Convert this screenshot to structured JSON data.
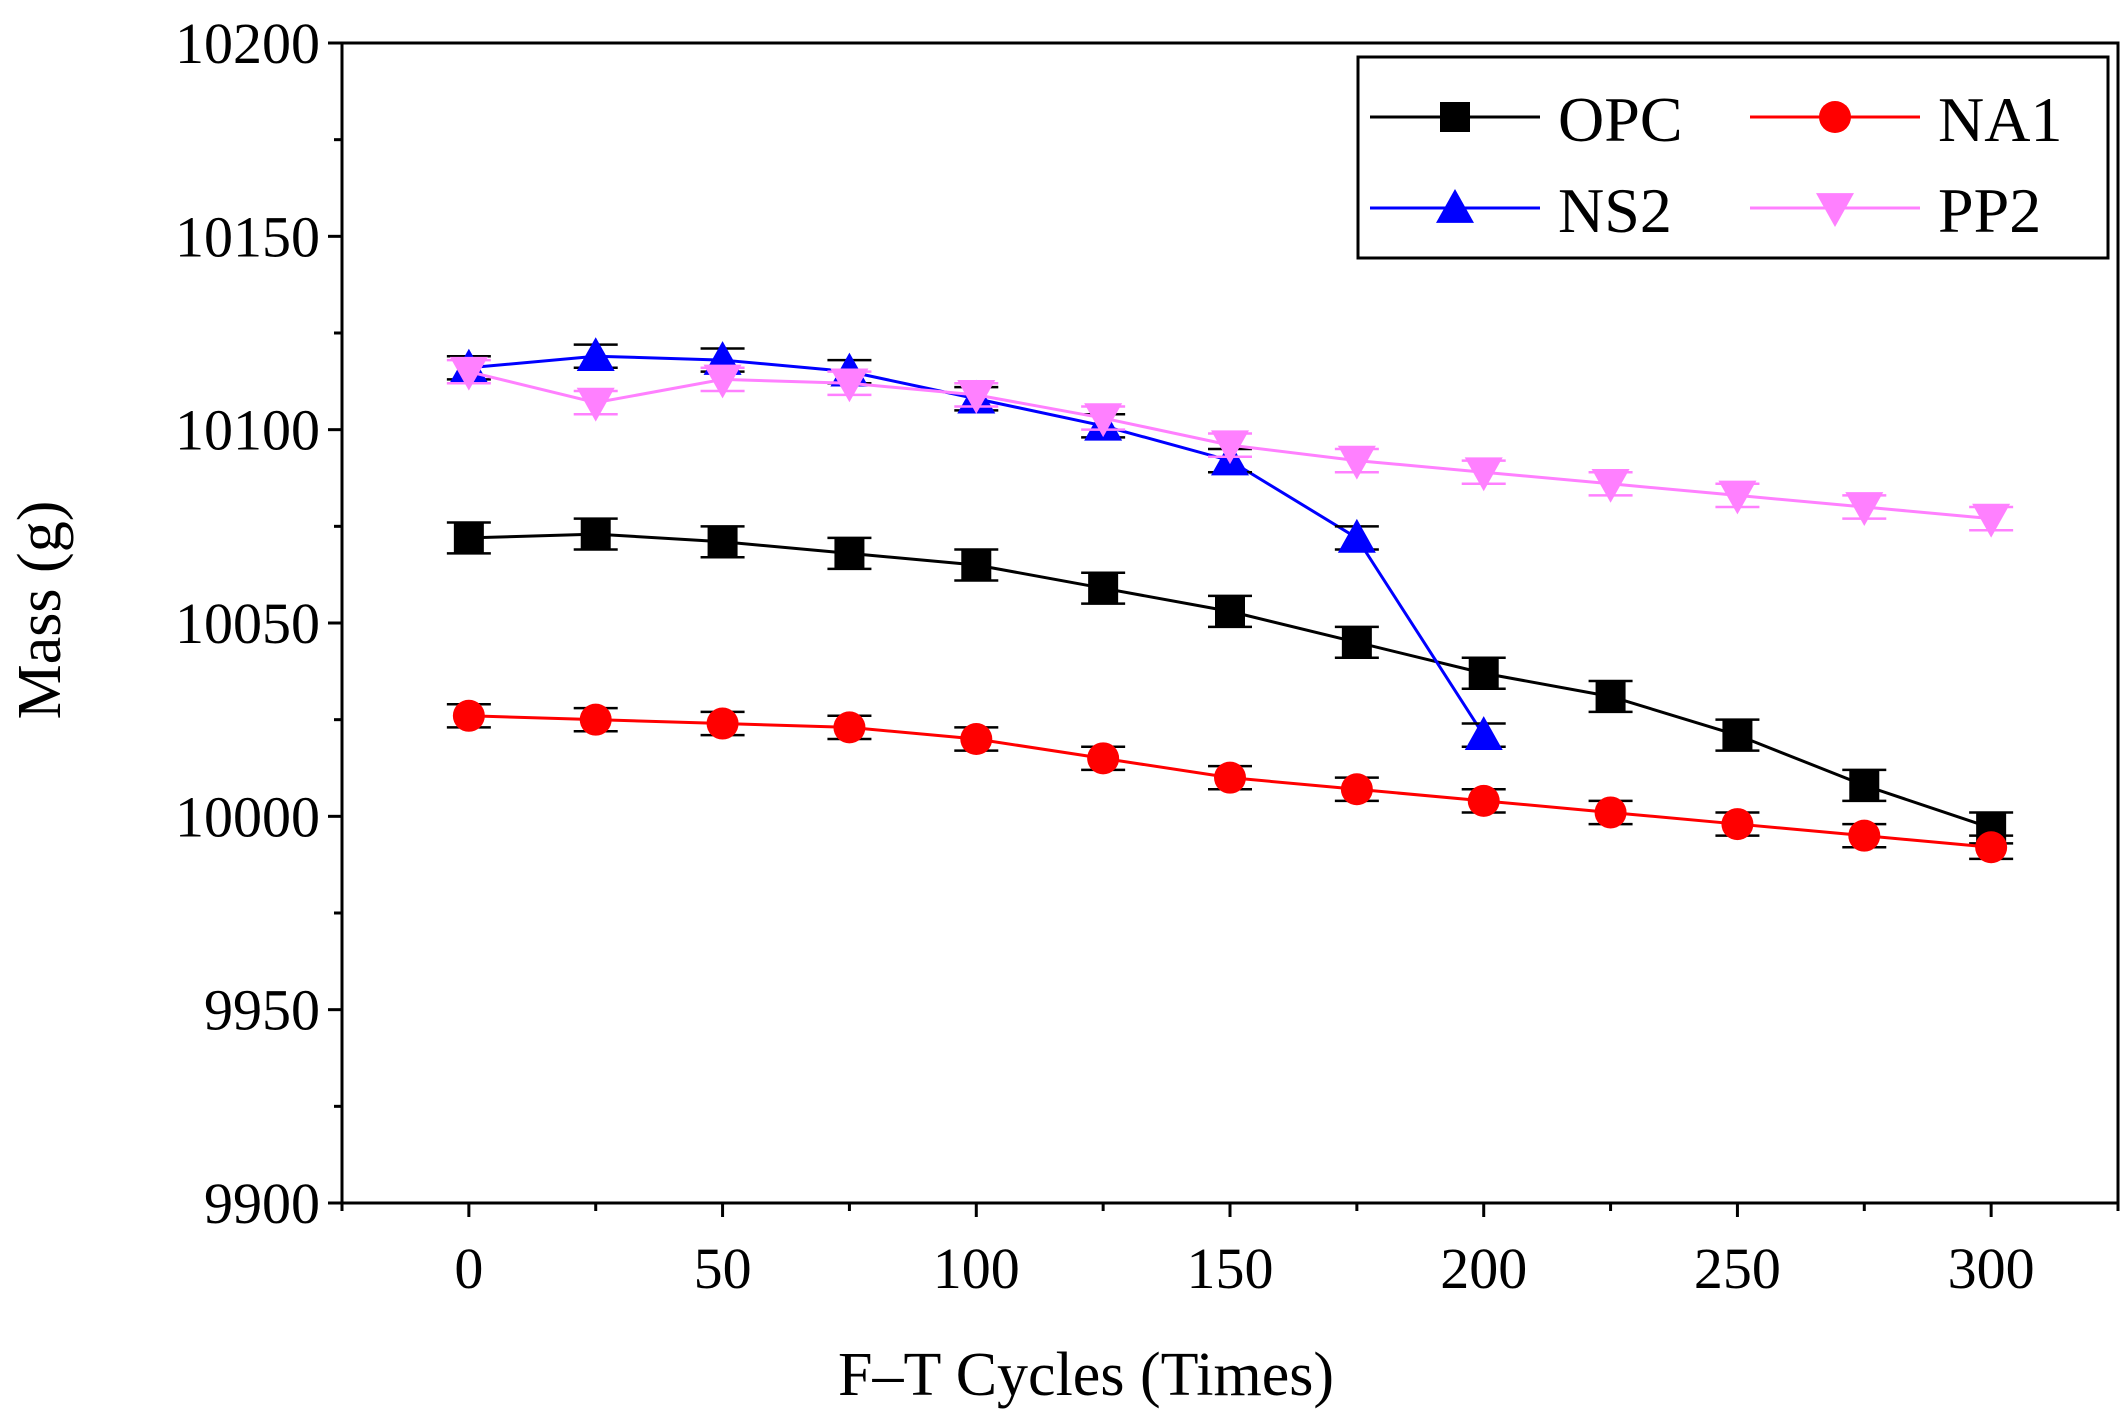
{
  "chart_data": {
    "type": "line",
    "title": "",
    "xlabel": "F–T Cycles (Times)",
    "ylabel": "Mass (g)",
    "xlim": [
      -25,
      325
    ],
    "ylim": [
      9900,
      10200
    ],
    "xticks": [
      0,
      50,
      100,
      150,
      200,
      250,
      300
    ],
    "yticks": [
      9900,
      9950,
      10000,
      10050,
      10100,
      10150,
      10200
    ],
    "xtick_labels": [
      "0",
      "50",
      "100",
      "150",
      "200",
      "250",
      "300"
    ],
    "ytick_labels": [
      "9900",
      "9950",
      "10000",
      "10050",
      "10100",
      "10150",
      "10200"
    ],
    "grid": false,
    "legend_position": "top-right",
    "series": [
      {
        "name": "OPC",
        "color": "#000000",
        "marker": "square",
        "x": [
          0,
          25,
          50,
          75,
          100,
          125,
          150,
          175,
          200,
          225,
          250,
          275,
          300
        ],
        "y": [
          10072,
          10073,
          10071,
          10068,
          10065,
          10059,
          10053,
          10045,
          10037,
          10031,
          10021,
          10008,
          9997
        ],
        "err": [
          4,
          4,
          4,
          4,
          4,
          4,
          4,
          4,
          4,
          4,
          4,
          4,
          4
        ]
      },
      {
        "name": "NA1",
        "color": "#ff0000",
        "marker": "circle",
        "x": [
          0,
          25,
          50,
          75,
          100,
          125,
          150,
          175,
          200,
          225,
          250,
          275,
          300
        ],
        "y": [
          10026,
          10025,
          10024,
          10023,
          10020,
          10015,
          10010,
          10007,
          10004,
          10001,
          9998,
          9995,
          9992
        ],
        "err": [
          3,
          3,
          3,
          3,
          3,
          3,
          3,
          3,
          3,
          3,
          3,
          3,
          3
        ]
      },
      {
        "name": "NS2",
        "color": "#0000ff",
        "marker": "triangle-up",
        "x": [
          0,
          25,
          50,
          75,
          100,
          125,
          150,
          175,
          200
        ],
        "y": [
          10116,
          10119,
          10118,
          10115,
          10108,
          10101,
          10092,
          10072,
          10021
        ],
        "err": [
          3,
          3,
          3,
          3,
          3,
          3,
          3,
          3,
          3
        ]
      },
      {
        "name": "PP2",
        "color": "#ff80ff",
        "marker": "triangle-down",
        "x": [
          0,
          25,
          50,
          75,
          100,
          125,
          150,
          175,
          200,
          225,
          250,
          275,
          300
        ],
        "y": [
          10115,
          10107,
          10113,
          10112,
          10109,
          10103,
          10096,
          10092,
          10089,
          10086,
          10083,
          10080,
          10077
        ],
        "err": [
          3,
          3,
          3,
          3,
          3,
          3,
          3,
          3,
          3,
          3,
          3,
          3,
          3
        ]
      }
    ]
  }
}
